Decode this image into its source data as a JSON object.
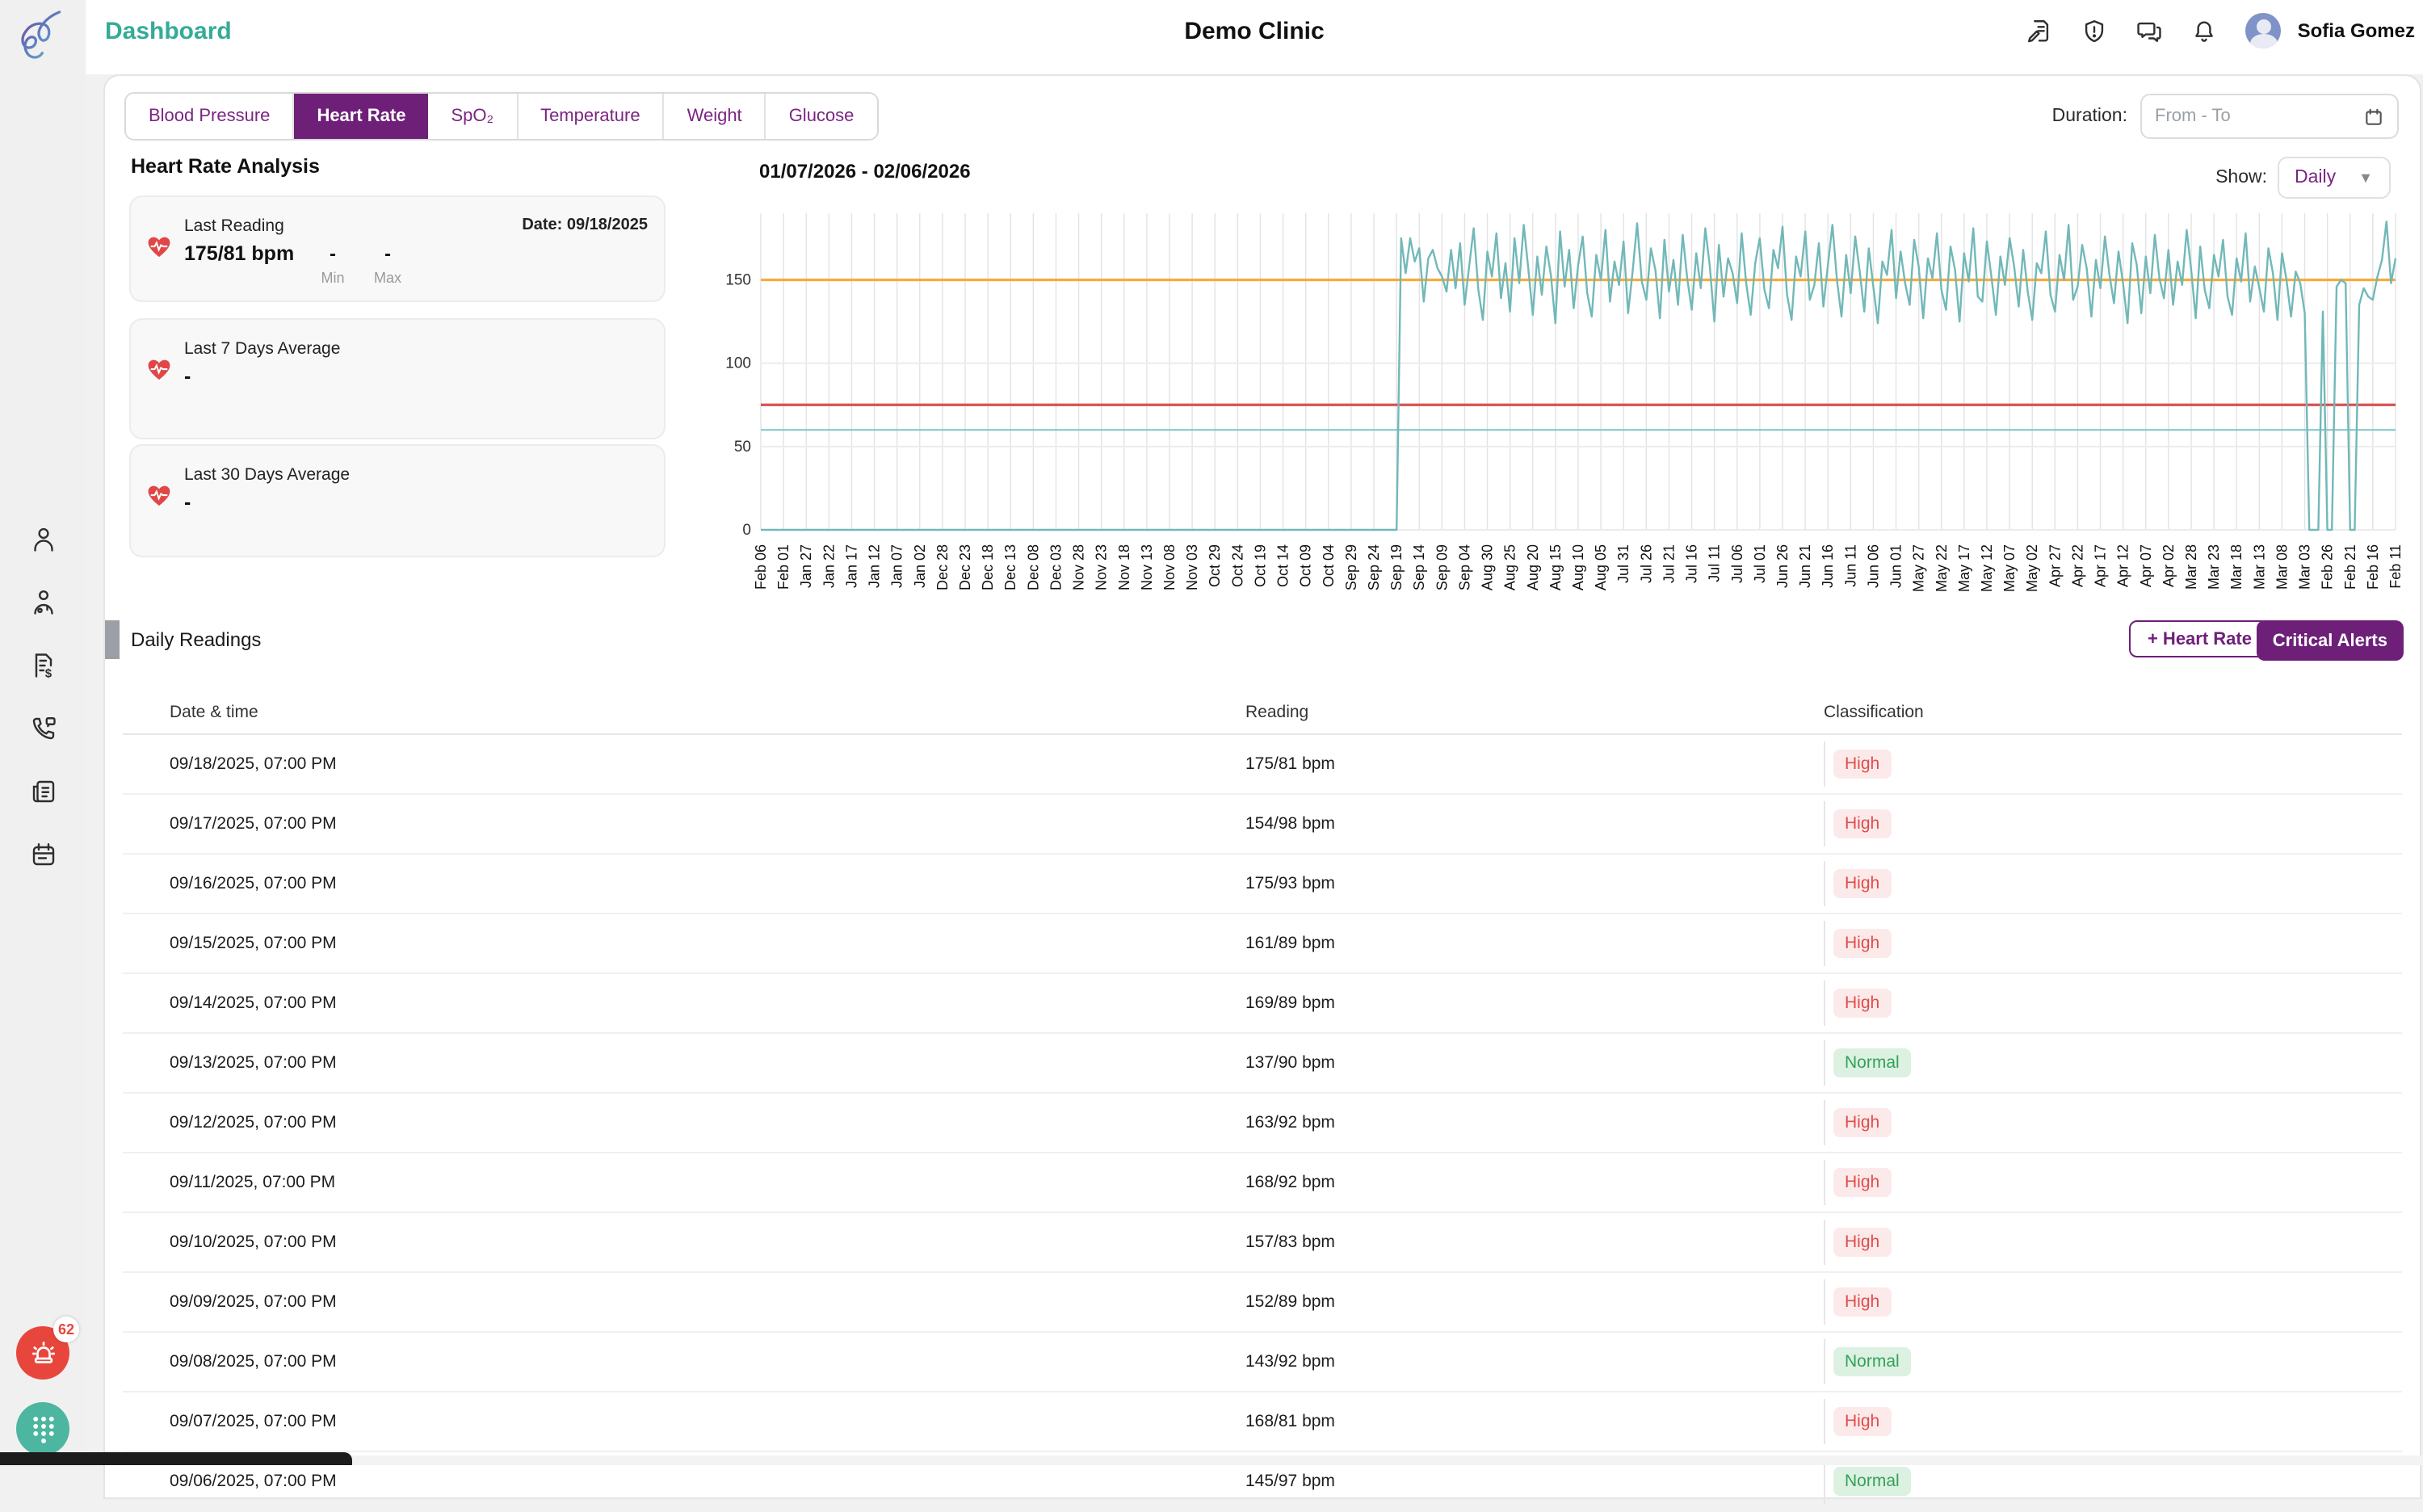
{
  "app": {
    "page_title": "Dashboard",
    "clinic_name": "Demo Clinic",
    "user_name": "Sofia Gomez"
  },
  "icons": {
    "sidebar": [
      "patients-icon",
      "doctor-icon",
      "billing-icon",
      "call-log-icon",
      "reports-icon",
      "appointments-icon"
    ],
    "header": [
      "consent-form-icon",
      "shield-alert-icon",
      "messages-icon",
      "notifications-bell-icon"
    ],
    "floating": [
      "alarm-siren-icon",
      "keypad-icon"
    ]
  },
  "notifications": {
    "alarm_count": "62"
  },
  "tabs": {
    "items": [
      "Blood Pressure",
      "Heart Rate",
      "SpO₂",
      "Temperature",
      "Weight",
      "Glucose"
    ],
    "active": "Heart Rate"
  },
  "duration": {
    "label": "Duration:",
    "placeholder": "From - To"
  },
  "analysis": {
    "title": "Heart Rate Analysis",
    "cards": [
      {
        "title": "Last Reading",
        "value": "175/81 bpm",
        "min": "-",
        "min_label": "Min",
        "max": "-",
        "max_label": "Max",
        "date": "Date: 09/18/2025"
      },
      {
        "title": "Last 7 Days Average",
        "value": "-"
      },
      {
        "title": "Last 30 Days Average",
        "value": "-"
      }
    ]
  },
  "chart_header": {
    "range": "01/07/2026 - 02/06/2026",
    "show_label": "Show:",
    "show_value": "Daily"
  },
  "chart_data": {
    "type": "line",
    "title": "01/07/2026 - 02/06/2026",
    "xlabel": "",
    "ylabel": "",
    "ylim": [
      0,
      190
    ],
    "yticks": [
      0,
      50,
      100,
      150
    ],
    "grid": true,
    "legend_position": "none",
    "x_tick_labels": [
      "Feb 06",
      "Feb 01",
      "Jan 27",
      "Jan 22",
      "Jan 17",
      "Jan 12",
      "Jan 07",
      "Jan 02",
      "Dec 28",
      "Dec 23",
      "Dec 18",
      "Dec 13",
      "Dec 08",
      "Dec 03",
      "Nov 28",
      "Nov 23",
      "Nov 18",
      "Nov 13",
      "Nov 08",
      "Nov 03",
      "Oct 29",
      "Oct 24",
      "Oct 19",
      "Oct 14",
      "Oct 09",
      "Oct 04",
      "Sep 29",
      "Sep 24",
      "Sep 19",
      "Sep 14",
      "Sep 09",
      "Sep 04",
      "Aug 30",
      "Aug 25",
      "Aug 20",
      "Aug 15",
      "Aug 10",
      "Aug 05",
      "Jul 31",
      "Jul 26",
      "Jul 21",
      "Jul 16",
      "Jul 11",
      "Jul 06",
      "Jul 01",
      "Jun 26",
      "Jun 21",
      "Jun 16",
      "Jun 11",
      "Jun 06",
      "Jun 01",
      "May 27",
      "May 22",
      "May 17",
      "May 12",
      "May 07",
      "May 02",
      "Apr 27",
      "Apr 22",
      "Apr 17",
      "Apr 12",
      "Apr 07",
      "Apr 02",
      "Mar 28",
      "Mar 23",
      "Mar 18",
      "Mar 13",
      "Mar 08",
      "Mar 03",
      "Feb 26",
      "Feb 21",
      "Feb 16",
      "Feb 11"
    ],
    "tick_every_n_points": 5,
    "reference_lines": [
      {
        "value": 150,
        "color": "#f7ab3a",
        "width": 1.6
      },
      {
        "value": 75,
        "color": "#dc4f4f",
        "width": 1.6
      },
      {
        "value": 60,
        "color": "#7fc4c4",
        "width": 1.0
      }
    ],
    "series": [
      {
        "name": "Heart Rate",
        "color": "#72b8b8",
        "values": [
          0,
          0,
          0,
          0,
          0,
          0,
          0,
          0,
          0,
          0,
          0,
          0,
          0,
          0,
          0,
          0,
          0,
          0,
          0,
          0,
          0,
          0,
          0,
          0,
          0,
          0,
          0,
          0,
          0,
          0,
          0,
          0,
          0,
          0,
          0,
          0,
          0,
          0,
          0,
          0,
          0,
          0,
          0,
          0,
          0,
          0,
          0,
          0,
          0,
          0,
          0,
          0,
          0,
          0,
          0,
          0,
          0,
          0,
          0,
          0,
          0,
          0,
          0,
          0,
          0,
          0,
          0,
          0,
          0,
          0,
          0,
          0,
          0,
          0,
          0,
          0,
          0,
          0,
          0,
          0,
          0,
          0,
          0,
          0,
          0,
          0,
          0,
          0,
          0,
          0,
          0,
          0,
          0,
          0,
          0,
          0,
          0,
          0,
          0,
          0,
          0,
          0,
          0,
          0,
          0,
          0,
          0,
          0,
          0,
          0,
          0,
          0,
          0,
          0,
          0,
          0,
          0,
          0,
          0,
          0,
          0,
          0,
          0,
          0,
          0,
          0,
          0,
          0,
          0,
          0,
          0,
          0,
          0,
          0,
          0,
          0,
          0,
          0,
          0,
          0,
          0,
          175,
          154,
          175,
          161,
          169,
          137,
          163,
          168,
          157,
          152,
          143,
          168,
          145,
          172,
          135,
          158,
          181,
          144,
          126,
          167,
          152,
          178,
          139,
          160,
          131,
          175,
          148,
          183,
          157,
          129,
          164,
          141,
          170,
          153,
          124,
          179,
          146,
          168,
          133,
          159,
          176,
          142,
          128,
          165,
          150,
          180,
          137,
          161,
          147,
          173,
          130,
          155,
          184,
          149,
          138,
          169,
          156,
          127,
          174,
          143,
          162,
          135,
          177,
          151,
          132,
          166,
          145,
          181,
          158,
          125,
          171,
          140,
          163,
          154,
          136,
          178,
          148,
          129,
          160,
          175,
          144,
          133,
          168,
          157,
          182,
          141,
          126,
          164,
          152,
          179,
          138,
          147,
          172,
          134,
          159,
          183,
          150,
          128,
          165,
          142,
          176,
          155,
          131,
          169,
          146,
          124,
          161,
          153,
          180,
          139,
          167,
          148,
          135,
          174,
          158,
          127,
          163,
          151,
          178,
          144,
          132,
          170,
          156,
          125,
          166,
          149,
          181,
          140,
          137,
          173,
          152,
          129,
          164,
          147,
          175,
          158,
          134,
          168,
          143,
          126,
          160,
          154,
          179,
          141,
          131,
          165,
          150,
          183,
          138,
          146,
          171,
          157,
          128,
          162,
          145,
          176,
          153,
          136,
          167,
          148,
          124,
          172,
          159,
          130,
          164,
          142,
          177,
          151,
          139,
          168,
          135,
          161,
          147,
          180,
          156,
          127,
          170,
          144,
          133,
          165,
          152,
          174,
          140,
          129,
          163,
          149,
          178,
          137,
          158,
          145,
          131,
          169,
          154,
          126,
          166,
          150,
          128,
          155,
          148,
          130,
          0,
          0,
          0,
          131,
          0,
          0,
          146,
          150,
          148,
          0,
          0,
          135,
          145,
          140,
          138,
          152,
          162,
          185,
          148,
          163
        ]
      }
    ]
  },
  "readings": {
    "section_title": "Daily Readings",
    "add_button": "+ Heart Rate",
    "alerts_button": "Critical Alerts",
    "columns": [
      "Date & time",
      "Reading",
      "Classification"
    ],
    "rows": [
      {
        "datetime": "09/18/2025, 07:00 PM",
        "reading": "175/81 bpm",
        "classification": "High"
      },
      {
        "datetime": "09/17/2025, 07:00 PM",
        "reading": "154/98 bpm",
        "classification": "High"
      },
      {
        "datetime": "09/16/2025, 07:00 PM",
        "reading": "175/93 bpm",
        "classification": "High"
      },
      {
        "datetime": "09/15/2025, 07:00 PM",
        "reading": "161/89 bpm",
        "classification": "High"
      },
      {
        "datetime": "09/14/2025, 07:00 PM",
        "reading": "169/89 bpm",
        "classification": "High"
      },
      {
        "datetime": "09/13/2025, 07:00 PM",
        "reading": "137/90 bpm",
        "classification": "Normal"
      },
      {
        "datetime": "09/12/2025, 07:00 PM",
        "reading": "163/92 bpm",
        "classification": "High"
      },
      {
        "datetime": "09/11/2025, 07:00 PM",
        "reading": "168/92 bpm",
        "classification": "High"
      },
      {
        "datetime": "09/10/2025, 07:00 PM",
        "reading": "157/83 bpm",
        "classification": "High"
      },
      {
        "datetime": "09/09/2025, 07:00 PM",
        "reading": "152/89 bpm",
        "classification": "High"
      },
      {
        "datetime": "09/08/2025, 07:00 PM",
        "reading": "143/92 bpm",
        "classification": "Normal"
      },
      {
        "datetime": "09/07/2025, 07:00 PM",
        "reading": "168/81 bpm",
        "classification": "High"
      },
      {
        "datetime": "09/06/2025, 07:00 PM",
        "reading": "145/97 bpm",
        "classification": "Normal"
      }
    ]
  },
  "colors": {
    "brand_purple": "#6e2079",
    "brand_teal": "#35ab97",
    "series_teal": "#72b8b8",
    "threshold_orange": "#f7ab3a",
    "threshold_red": "#dc4f4f",
    "badge_high_text": "#e14b4b",
    "badge_normal_text": "#35a159"
  }
}
